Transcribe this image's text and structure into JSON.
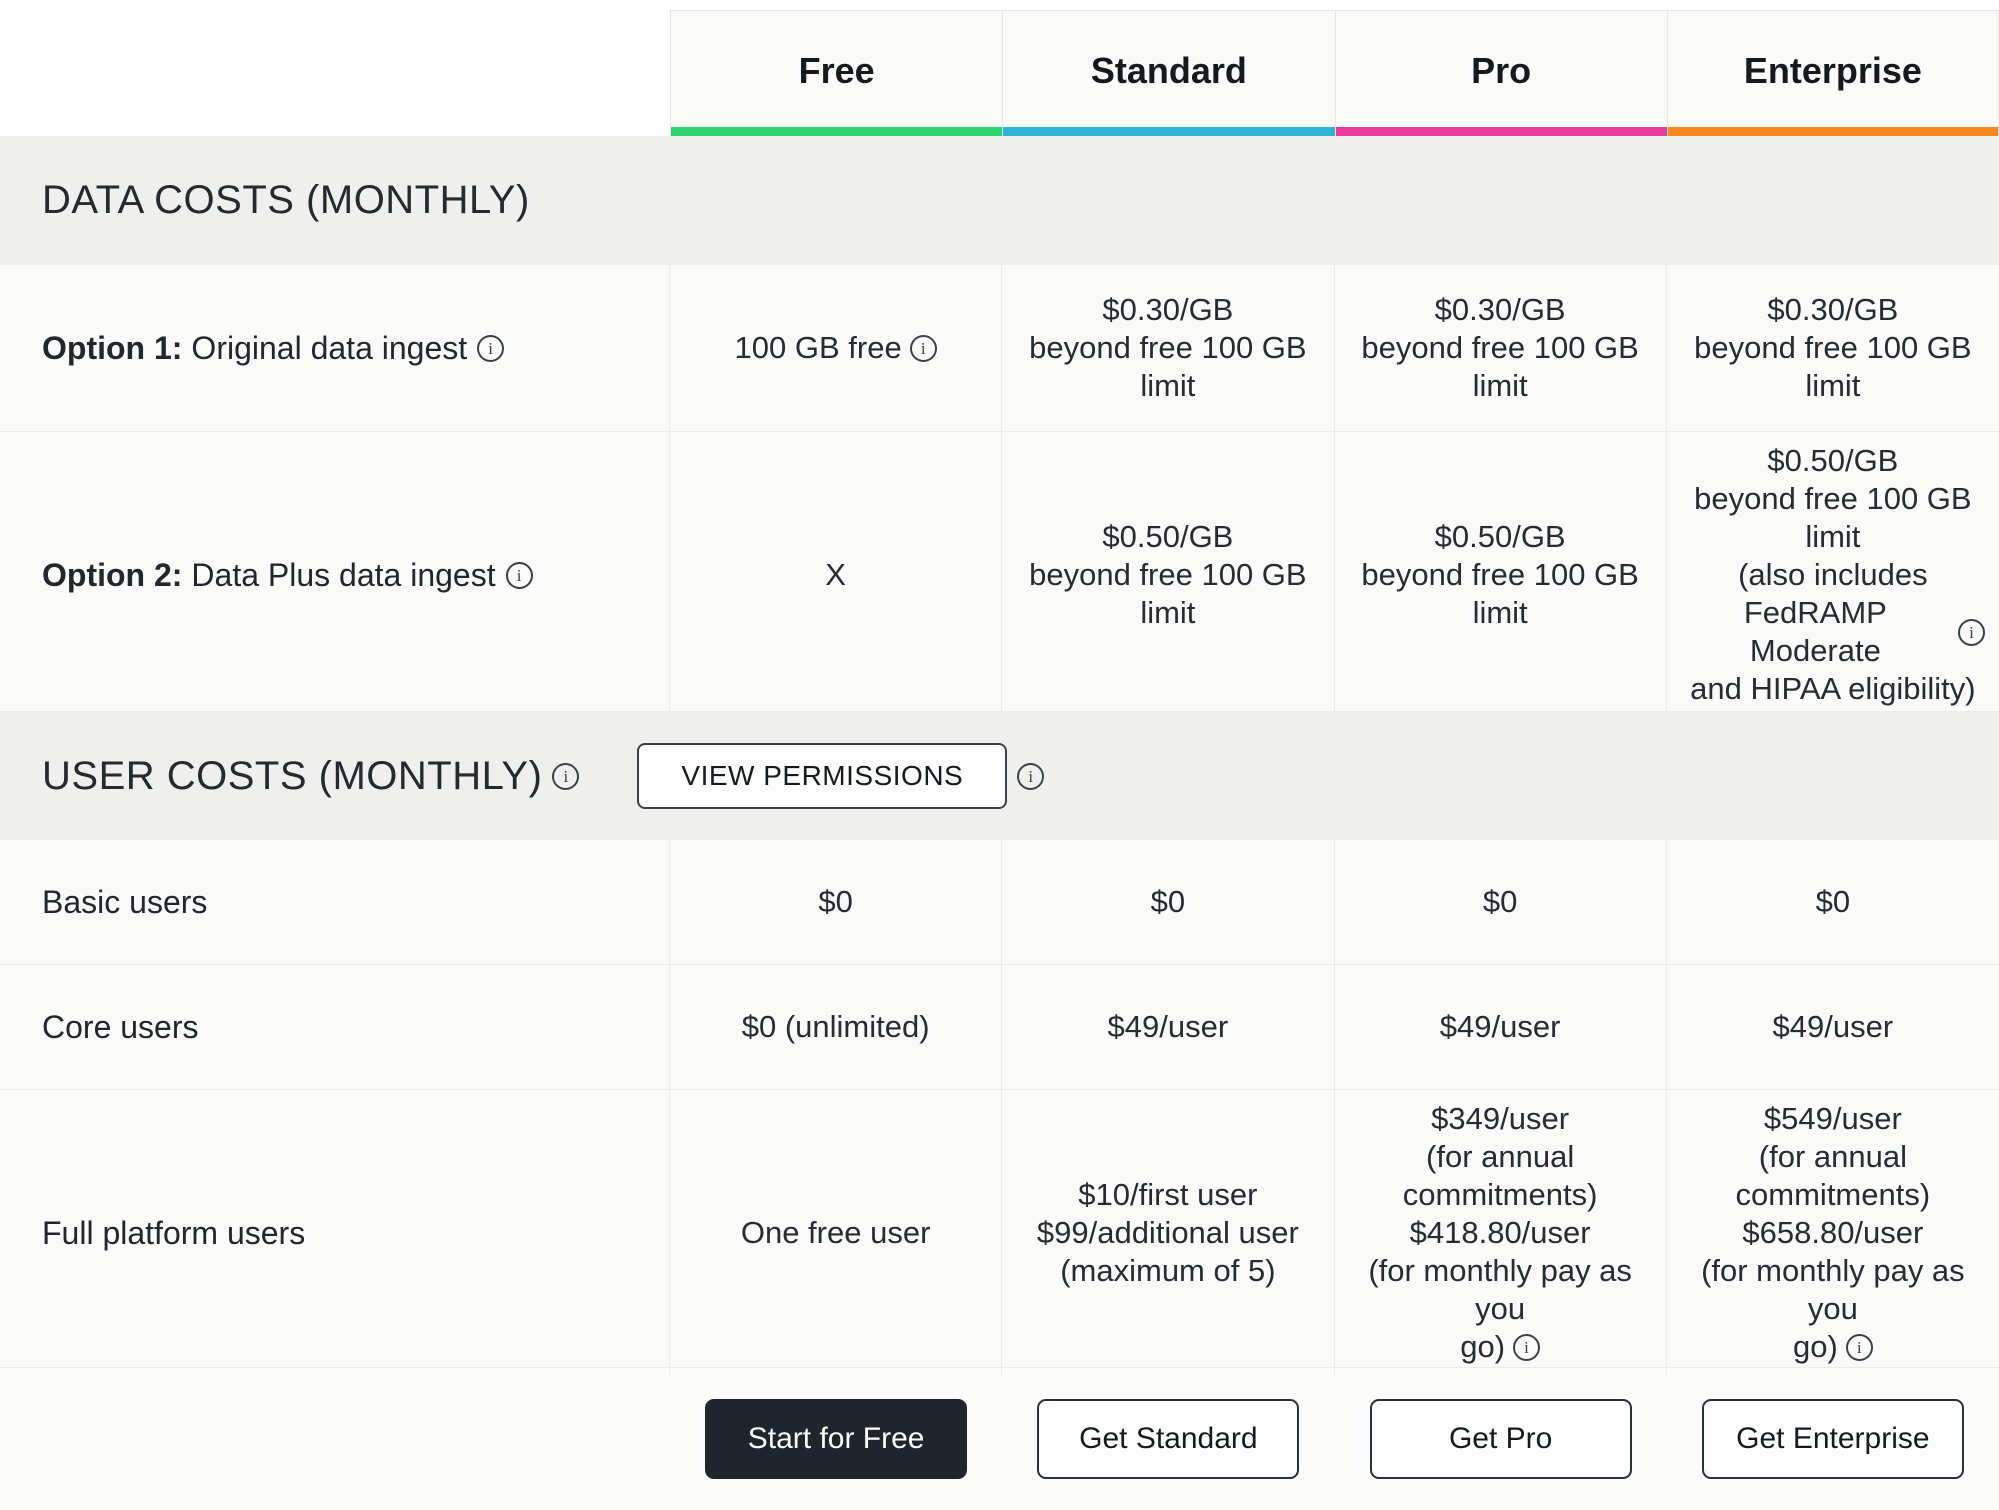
{
  "colors": {
    "cell_background": "#fafaf9",
    "section_band_background": "#efefed",
    "border": "#ebebe9",
    "text": "#22272d",
    "primary_button_background": "#1f252c",
    "primary_button_text": "#ffffff"
  },
  "plans": [
    {
      "name": "Free",
      "accent": "#2dd36f",
      "cta": "Start for Free",
      "cta_variant": "primary"
    },
    {
      "name": "Standard",
      "accent": "#2fb4d6",
      "cta": "Get Standard",
      "cta_variant": "secondary"
    },
    {
      "name": "Pro",
      "accent": "#e83b99",
      "cta": "Get Pro",
      "cta_variant": "secondary"
    },
    {
      "name": "Enterprise",
      "accent": "#f5891e",
      "cta": "Get Enterprise",
      "cta_variant": "secondary"
    }
  ],
  "sections": [
    {
      "title": "DATA COSTS (MONTHLY)",
      "rows": [
        {
          "label_bold": "Option 1:",
          "label_rest": "Original data ingest",
          "label_info": true,
          "cells": [
            {
              "lines": [
                {
                  "t": "100 GB free",
                  "info": true
                }
              ]
            },
            {
              "lines": [
                {
                  "t": "$0.30/GB"
                },
                {
                  "t": "beyond free 100 GB"
                },
                {
                  "t": "limit"
                }
              ]
            },
            {
              "lines": [
                {
                  "t": "$0.30/GB"
                },
                {
                  "t": "beyond free 100 GB"
                },
                {
                  "t": "limit"
                }
              ]
            },
            {
              "lines": [
                {
                  "t": "$0.30/GB"
                },
                {
                  "t": "beyond free 100 GB"
                },
                {
                  "t": "limit"
                }
              ]
            }
          ]
        },
        {
          "label_bold": "Option 2:",
          "label_rest": "Data Plus data ingest",
          "label_info": true,
          "cells": [
            {
              "lines": [
                {
                  "t": "X"
                }
              ]
            },
            {
              "lines": [
                {
                  "t": "$0.50/GB"
                },
                {
                  "t": "beyond free 100 GB"
                },
                {
                  "t": "limit"
                }
              ]
            },
            {
              "lines": [
                {
                  "t": "$0.50/GB"
                },
                {
                  "t": "beyond free 100 GB"
                },
                {
                  "t": "limit"
                }
              ]
            },
            {
              "lines": [
                {
                  "t": "$0.50/GB"
                },
                {
                  "t": "beyond free 100 GB"
                },
                {
                  "t": "limit"
                },
                {
                  "t": "(also includes"
                },
                {
                  "t": "FedRAMP Moderate",
                  "info": true
                },
                {
                  "t": "and HIPAA eligibility)"
                }
              ]
            }
          ]
        }
      ]
    },
    {
      "title": "USER COSTS (MONTHLY)",
      "title_info": true,
      "permissions_button": "VIEW PERMISSIONS",
      "button_info": true,
      "rows": [
        {
          "label_rest": "Basic users",
          "cells": [
            {
              "lines": [
                {
                  "t": "$0"
                }
              ]
            },
            {
              "lines": [
                {
                  "t": "$0"
                }
              ]
            },
            {
              "lines": [
                {
                  "t": "$0"
                }
              ]
            },
            {
              "lines": [
                {
                  "t": "$0"
                }
              ]
            }
          ]
        },
        {
          "label_rest": "Core users",
          "cells": [
            {
              "lines": [
                {
                  "t": "$0 (unlimited)"
                }
              ]
            },
            {
              "lines": [
                {
                  "t": "$49/user"
                }
              ]
            },
            {
              "lines": [
                {
                  "t": "$49/user"
                }
              ]
            },
            {
              "lines": [
                {
                  "t": "$49/user"
                }
              ]
            }
          ]
        },
        {
          "label_rest": "Full platform users",
          "cells": [
            {
              "lines": [
                {
                  "t": "One free user"
                }
              ]
            },
            {
              "lines": [
                {
                  "t": "$10/first user"
                },
                {
                  "t": "$99/additional user"
                },
                {
                  "t": "(maximum of 5)"
                }
              ]
            },
            {
              "lines": [
                {
                  "t": "$349/user"
                },
                {
                  "t": "(for annual"
                },
                {
                  "t": "commitments)"
                },
                {
                  "t": "$418.80/user"
                },
                {
                  "t": "(for monthly pay as you"
                },
                {
                  "t": "go)",
                  "info": true
                }
              ]
            },
            {
              "lines": [
                {
                  "t": "$549/user"
                },
                {
                  "t": "(for annual"
                },
                {
                  "t": "commitments)"
                },
                {
                  "t": "$658.80/user"
                },
                {
                  "t": "(for monthly pay as you"
                },
                {
                  "t": "go)",
                  "info": true
                }
              ]
            }
          ]
        }
      ]
    }
  ]
}
